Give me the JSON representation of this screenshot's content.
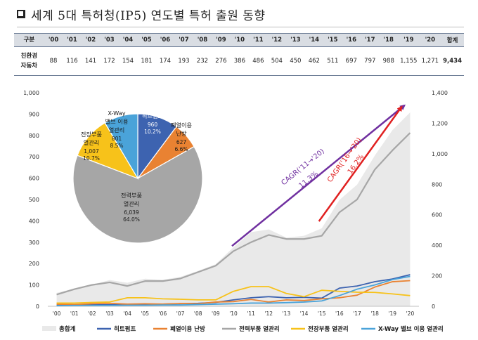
{
  "title": "세계 5대 특허청(IP5) 연도별 특허 출원 동향",
  "table": {
    "header_label": "구분",
    "years": [
      "'00",
      "'01",
      "'02",
      "'03",
      "'04",
      "'05",
      "'06",
      "'07",
      "'08",
      "'09",
      "'10",
      "'11",
      "'12",
      "'13",
      "'14",
      "'15",
      "'16",
      "'17",
      "'18",
      "'19",
      "'20"
    ],
    "total_label": "합계",
    "row_label_line1": "친환경",
    "row_label_line2": "자동차",
    "values": [
      "88",
      "116",
      "141",
      "172",
      "154",
      "181",
      "174",
      "193",
      "232",
      "276",
      "386",
      "486",
      "504",
      "450",
      "462",
      "511",
      "697",
      "797",
      "988",
      "1,155",
      "1,271"
    ],
    "total_value": "9,434"
  },
  "chart_data": {
    "type": "area",
    "categories": [
      "'00",
      "'01",
      "'02",
      "'03",
      "'04",
      "'05",
      "'06",
      "'07",
      "'08",
      "'09",
      "'10",
      "'11",
      "'12",
      "'13",
      "'14",
      "'15",
      "'16",
      "'17",
      "'18",
      "'19",
      "'20"
    ],
    "left_axis": {
      "ylim": [
        0,
        1000
      ],
      "ticks": [
        "0",
        "100",
        "200",
        "300",
        "400",
        "500",
        "600",
        "700",
        "800",
        "900",
        "1,000"
      ]
    },
    "right_axis": {
      "ylim": [
        0,
        1400
      ],
      "ticks": [
        "0",
        "200",
        "400",
        "600",
        "800",
        "1,000",
        "1,200",
        "1,400"
      ]
    },
    "series": [
      {
        "name": "총합계",
        "axis": "right",
        "kind": "area",
        "color": "#e9e9e9",
        "values": [
          88,
          116,
          141,
          172,
          154,
          181,
          174,
          193,
          232,
          276,
          386,
          486,
          504,
          450,
          462,
          511,
          697,
          797,
          988,
          1155,
          1271
        ]
      },
      {
        "name": "히트펌프",
        "axis": "left",
        "kind": "line",
        "color": "#3d63b0",
        "values": [
          5,
          6,
          7,
          7,
          8,
          9,
          10,
          12,
          14,
          18,
          30,
          40,
          45,
          40,
          42,
          38,
          85,
          95,
          115,
          128,
          148
        ]
      },
      {
        "name": "폐열이용 난방",
        "axis": "left",
        "kind": "line",
        "color": "#e98232",
        "values": [
          10,
          8,
          12,
          14,
          10,
          12,
          10,
          13,
          12,
          20,
          22,
          32,
          20,
          30,
          27,
          35,
          40,
          52,
          90,
          115,
          120
        ]
      },
      {
        "name": "전력부품 열관리",
        "axis": "left",
        "kind": "line",
        "color": "#a6a6a6",
        "values": [
          55,
          80,
          100,
          112,
          95,
          118,
          118,
          130,
          160,
          190,
          258,
          300,
          334,
          315,
          315,
          330,
          440,
          500,
          640,
          730,
          812
        ]
      },
      {
        "name": "전장부품 열관리",
        "axis": "left",
        "kind": "line",
        "color": "#f7c21a",
        "values": [
          15,
          15,
          18,
          20,
          40,
          40,
          35,
          33,
          30,
          30,
          70,
          92,
          92,
          60,
          45,
          75,
          70,
          66,
          65,
          58,
          50
        ]
      },
      {
        "name": "X-Way 밸브 이용 열관리",
        "axis": "left",
        "kind": "line",
        "color": "#4aa3d9",
        "values": [
          3,
          4,
          4,
          4,
          5,
          5,
          6,
          6,
          8,
          10,
          12,
          15,
          15,
          17,
          20,
          25,
          50,
          80,
          100,
          125,
          140
        ]
      }
    ],
    "pie": {
      "slices": [
        {
          "label_lines": [
            "히트펌프"
          ],
          "count": "960",
          "pct": "10.2%",
          "value": 10.2,
          "color": "#3d63b0"
        },
        {
          "label_lines": [
            "폐열이용",
            "난방"
          ],
          "count": "627",
          "pct": "6.6%",
          "value": 6.6,
          "color": "#e98232"
        },
        {
          "label_lines": [
            "전력부품",
            "열관리"
          ],
          "count": "6,039",
          "pct": "64.0%",
          "value": 64.0,
          "color": "#a6a6a6"
        },
        {
          "label_lines": [
            "전장부품",
            "열관리"
          ],
          "count": "1,007",
          "pct": "10.7%",
          "value": 10.7,
          "color": "#f7c21a"
        },
        {
          "label_lines": [
            "X-Way",
            "밸브 이용",
            "열관리"
          ],
          "count": "801",
          "pct": "8.5%",
          "value": 8.5,
          "color": "#4aa3d9"
        }
      ]
    },
    "annotations": [
      {
        "text": "CAGR('11→'20)",
        "value_text": "11.3%",
        "color": "#7030a0",
        "from": 10,
        "to": 20
      },
      {
        "text": "CAGR('16→'20)",
        "value_text": "16.2%",
        "color": "#e02020",
        "from": 15,
        "to": 20
      }
    ]
  }
}
